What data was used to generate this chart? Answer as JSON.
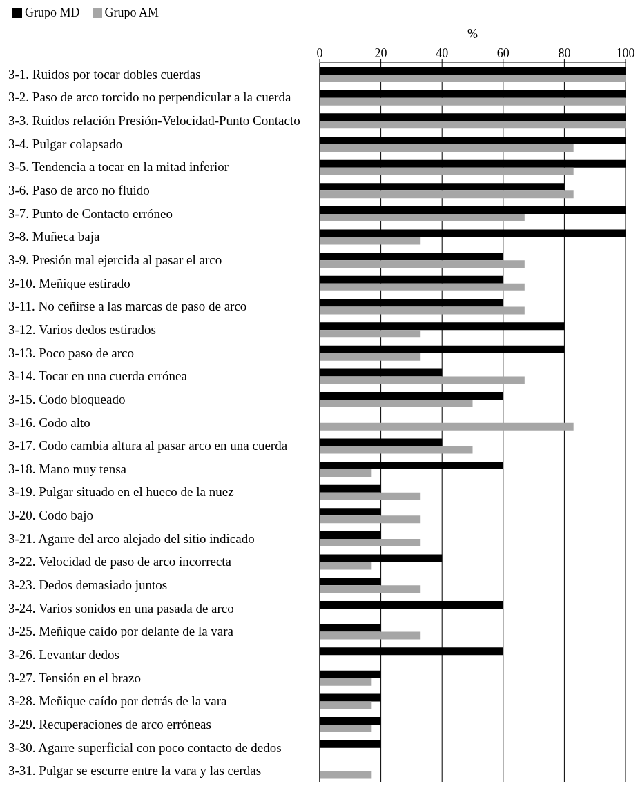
{
  "chart_data": {
    "type": "bar",
    "orientation": "horizontal",
    "xlabel": "%",
    "categories": [
      "3-1. Ruidos por tocar dobles cuerdas",
      "3-2. Paso de arco torcido no perpendicular a la cuerda",
      "3-3. Ruidos relación Presión-Velocidad-Punto Contacto",
      "3-4. Pulgar colapsado",
      "3-5. Tendencia a tocar en la mitad inferior",
      "3-6. Paso de arco no fluido",
      "3-7. Punto de Contacto erróneo",
      "3-8. Muñeca baja",
      "3-9. Presión mal ejercida al pasar el arco",
      "3-10. Meñique estirado",
      "3-11. No ceñirse a las marcas de paso de arco",
      "3-12. Varios dedos estirados",
      "3-13. Poco paso de arco",
      "3-14. Tocar en una cuerda errónea",
      "3-15. Codo bloqueado",
      "3-16. Codo alto",
      "3-17. Codo cambia altura al pasar arco en una cuerda",
      "3-18. Mano muy tensa",
      "3-19. Pulgar situado en el hueco de la nuez",
      "3-20. Codo bajo",
      "3-21. Agarre del arco alejado del sitio indicado",
      "3-22. Velocidad de paso de arco incorrecta",
      "3-23. Dedos demasiado juntos",
      "3-24. Varios sonidos en una pasada de arco",
      "3-25. Meñique caído por delante de la vara",
      "3-26. Levantar dedos",
      "3-27. Tensión en el brazo",
      "3-28. Meñique caído por detrás de la vara",
      "3-29. Recuperaciones de arco erróneas",
      "3-30. Agarre superficial con poco contacto de dedos",
      "3-31. Pulgar se escurre entre la vara y las cerdas"
    ],
    "series": [
      {
        "name": "Grupo MD",
        "color": "#000000",
        "values": [
          100,
          100,
          100,
          100,
          100,
          80,
          100,
          100,
          60,
          60,
          60,
          80,
          80,
          40,
          60,
          0,
          40,
          60,
          20,
          20,
          20,
          40,
          20,
          60,
          20,
          60,
          20,
          20,
          20,
          20,
          0
        ]
      },
      {
        "name": "Grupo AM",
        "color": "#a6a6a6",
        "values": [
          100,
          100,
          100,
          83,
          83,
          83,
          67,
          33,
          67,
          67,
          67,
          33,
          33,
          67,
          50,
          83,
          50,
          17,
          33,
          33,
          33,
          17,
          33,
          0,
          33,
          0,
          17,
          17,
          17,
          0,
          17
        ]
      }
    ],
    "xlim": [
      0,
      100
    ],
    "xticks": [
      0,
      20,
      40,
      60,
      80,
      100
    ],
    "grid": "x",
    "legend": "top left"
  }
}
